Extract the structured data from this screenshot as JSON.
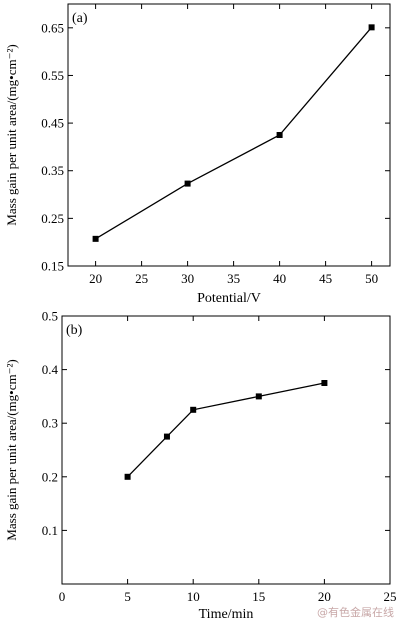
{
  "chart_data": [
    {
      "type": "line",
      "panel_label": "(a)",
      "x": [
        20,
        30,
        40,
        50
      ],
      "series": [
        {
          "values": [
            0.207,
            0.323,
            0.425,
            0.651
          ]
        }
      ],
      "xlabel": "Potential/V",
      "ylabel": "Mass gain per unit area/(mg•cm⁻²)",
      "xlim": [
        17,
        52
      ],
      "ylim": [
        0.15,
        0.7
      ],
      "xticks": [
        20,
        25,
        30,
        35,
        40,
        45,
        50
      ],
      "yticks": [
        0.15,
        0.25,
        0.35,
        0.45,
        0.55,
        0.65
      ],
      "ytick_labels": [
        "0.15",
        "0.25",
        "0.35",
        "0.45",
        "0.55",
        "0.65"
      ],
      "grid": false,
      "marker": "square",
      "color": "#000000"
    },
    {
      "type": "line",
      "panel_label": "(b)",
      "x": [
        5,
        8,
        10,
        15,
        20
      ],
      "series": [
        {
          "values": [
            0.2,
            0.275,
            0.325,
            0.35,
            0.375
          ]
        }
      ],
      "xlabel": "Time/min",
      "ylabel": "Mass gain per unit area/(mg•cm⁻²)",
      "xlim": [
        0,
        25
      ],
      "ylim": [
        0.0,
        0.5
      ],
      "xticks": [
        0,
        5,
        10,
        15,
        20,
        25
      ],
      "yticks": [
        0.1,
        0.2,
        0.3,
        0.4,
        0.5
      ],
      "ytick_labels": [
        "0.1",
        "0.2",
        "0.3",
        "0.4",
        "0.5"
      ],
      "grid": false,
      "marker": "square",
      "color": "#000000"
    }
  ],
  "watermark": "@有色金属在线"
}
